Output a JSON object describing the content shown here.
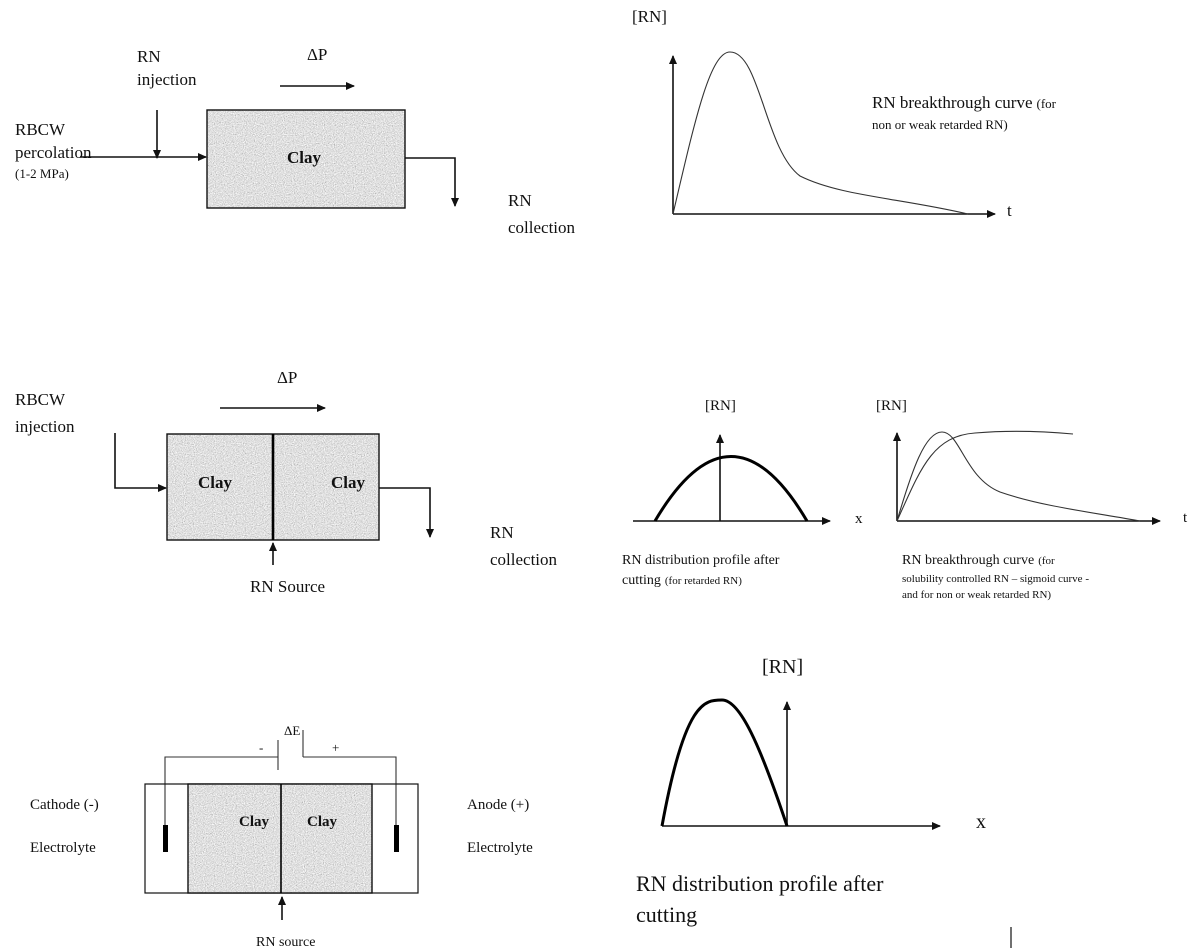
{
  "panel1": {
    "rn_label": "RN",
    "injection_label": "injection",
    "delta_p": "ΔP",
    "rbcw_label": "RBCW",
    "percolation_label": "percolation",
    "pressure_label": "(1-2 MPa)",
    "clay_label": "Clay",
    "collection_rn": "RN",
    "collection_label": "collection",
    "graph_ylabel": "[RN]",
    "graph_xlabel": "t",
    "caption_main": "RN breakthrough curve",
    "caption_paren": "(for",
    "caption_line2": "non or weak retarded RN)"
  },
  "panel2": {
    "delta_p": "ΔP",
    "rbcw_label": "RBCW",
    "injection_label": "injection",
    "clay_left": "Clay",
    "clay_right": "Clay",
    "source_label": "RN Source",
    "collection_rn": "RN",
    "collection_label": "collection",
    "profile_ylabel": "[RN]",
    "profile_xlabel": "x",
    "profile_caption1": "RN distribution profile after",
    "profile_caption2_main": "cutting",
    "profile_caption2_paren": "(for retarded RN)",
    "bt_ylabel": "[RN]",
    "bt_xlabel": "t",
    "bt_caption1_main": "RN breakthrough curve",
    "bt_caption1_paren": "(for",
    "bt_caption2": "solubility controlled RN – sigmoid curve -",
    "bt_caption3": "and for non or weak retarded RN)"
  },
  "panel3": {
    "delta_e": "ΔE",
    "minus": "-",
    "plus": "+",
    "cathode_label": "Cathode (-)",
    "cathode_electrolyte": "Electrolyte",
    "anode_label": "Anode (+)",
    "anode_electrolyte": "Electrolyte",
    "clay_left": "Clay",
    "clay_right": "Clay",
    "source_label": "RN source",
    "graph_ylabel": "[RN]",
    "graph_xlabel": "x",
    "caption1": "RN distribution profile after",
    "caption2": "cutting"
  }
}
